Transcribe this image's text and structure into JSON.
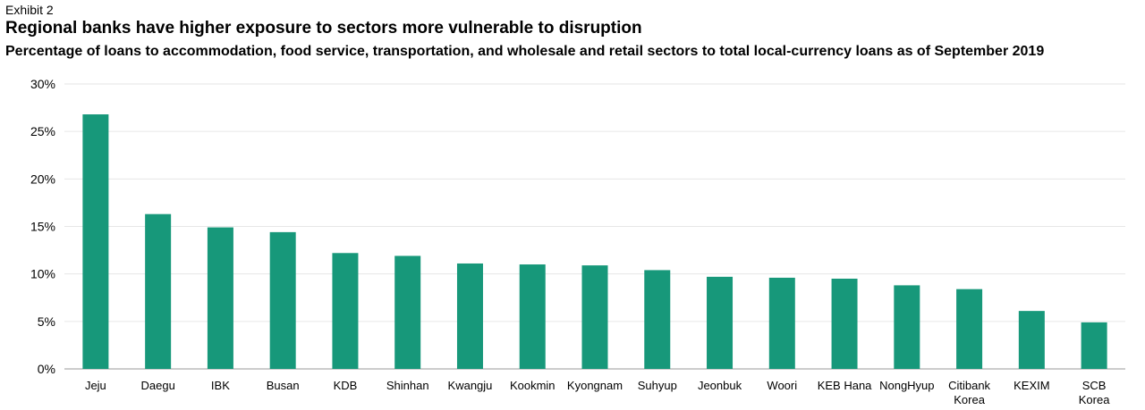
{
  "header": {
    "exhibit": "Exhibit 2",
    "title": "Regional banks have higher exposure to sectors more vulnerable to disruption",
    "subtitle": "Percentage of loans to accommodation, food service, transportation, and wholesale and retail sectors to total local-currency loans as of September 2019"
  },
  "colors": {
    "bar": "#17987a",
    "grid": "#e6e6e6",
    "axis": "#999999"
  },
  "chart_data": {
    "type": "bar",
    "title": "Regional banks have higher exposure to sectors more vulnerable to disruption",
    "subtitle": "Percentage of loans to accommodation, food service, transportation, and wholesale and retail sectors to total local-currency loans as of September 2019",
    "xlabel": "",
    "ylabel": "",
    "ylim": [
      0,
      30
    ],
    "yticks": [
      0,
      5,
      10,
      15,
      20,
      25,
      30
    ],
    "ytick_labels": [
      "0%",
      "5%",
      "10%",
      "15%",
      "20%",
      "25%",
      "30%"
    ],
    "grid": true,
    "legend": "none",
    "categories": [
      [
        "Jeju"
      ],
      [
        "Daegu"
      ],
      [
        "IBK"
      ],
      [
        "Busan"
      ],
      [
        "KDB"
      ],
      [
        "Shinhan"
      ],
      [
        "Kwangju"
      ],
      [
        "Kookmin"
      ],
      [
        "Kyongnam"
      ],
      [
        "Suhyup"
      ],
      [
        "Jeonbuk"
      ],
      [
        "Woori"
      ],
      [
        "KEB Hana"
      ],
      [
        "NongHyup"
      ],
      [
        "Citibank",
        "Korea"
      ],
      [
        "KEXIM"
      ],
      [
        "SCB",
        "Korea"
      ]
    ],
    "values": [
      26.8,
      16.3,
      14.9,
      14.4,
      12.2,
      11.9,
      11.1,
      11.0,
      10.9,
      10.4,
      9.7,
      9.6,
      9.5,
      8.8,
      8.4,
      6.1,
      4.9
    ]
  }
}
